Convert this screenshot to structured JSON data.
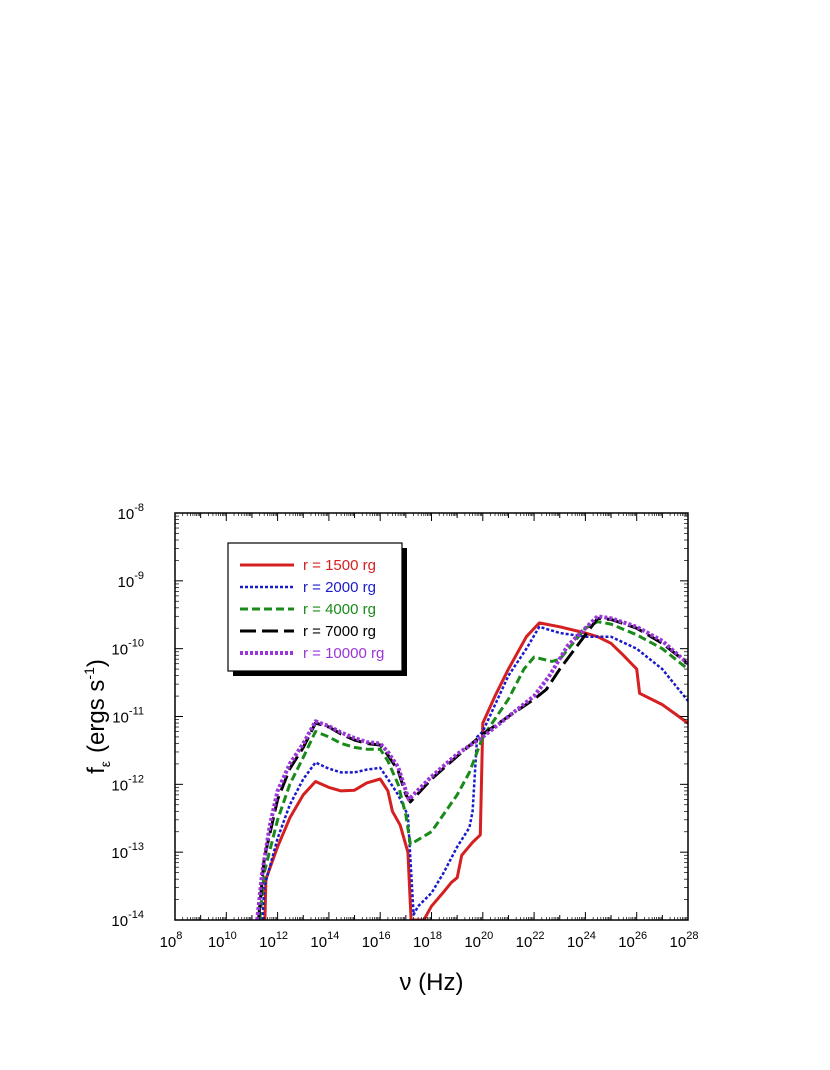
{
  "chart_data": {
    "type": "line",
    "title": "",
    "xlabel": "ν (Hz)",
    "ylabel_main": "f",
    "ylabel_sub": "ε",
    "ylabel_rest": "(ergs s",
    "ylabel_sup": "-1",
    "ylabel_close": ")",
    "x_scale": "log",
    "y_scale": "log",
    "xlim": [
      100000000.0,
      1e+28
    ],
    "ylim": [
      1e-14,
      1e-08
    ],
    "x_tick_exponents": [
      8,
      10,
      12,
      14,
      16,
      18,
      20,
      22,
      24,
      26,
      28
    ],
    "y_tick_exponents": [
      -14,
      -13,
      -12,
      -11,
      -10,
      -9,
      -8
    ],
    "tick_base": "10",
    "grid": false,
    "legend_position": "upper-left",
    "series": [
      {
        "name": "r = 1500 rg",
        "color": "#d42020",
        "dash": "solid",
        "points": [
          [
            320000000000.0,
            1e-14
          ],
          [
            350000000000.0,
            4e-14
          ],
          [
            1000000000000.0,
            1.2e-13
          ],
          [
            3000000000000.0,
            3.2e-13
          ],
          [
            10000000000000.0,
            7e-13
          ],
          [
            30000000000000.0,
            1.1e-12
          ],
          [
            100000000000000.0,
            9e-13
          ],
          [
            300000000000000.0,
            8e-13
          ],
          [
            1000000000000000.0,
            8.2e-13
          ],
          [
            3000000000000000.0,
            1.05e-12
          ],
          [
            1e+16,
            1.2e-12
          ],
          [
            2e+16,
            8e-13
          ],
          [
            3e+16,
            4e-13
          ],
          [
            6e+16,
            2.5e-13
          ],
          [
            1.2e+17,
            1e-13
          ],
          [
            1.6e+17,
            1e-14
          ],
          [
            5e+17,
            1e-14
          ],
          [
            1e+18,
            1.6e-14
          ],
          [
            3e+18,
            2.6e-14
          ],
          [
            6e+18,
            3.6e-14
          ],
          [
            1e+19,
            4.2e-14
          ],
          [
            1.5e+19,
            9e-14
          ],
          [
            4e+19,
            1.4e-13
          ],
          [
            8e+19,
            1.8e-13
          ],
          [
            1e+20,
            8e-12
          ],
          [
            3e+20,
            2e-11
          ],
          [
            1e+21,
            5e-11
          ],
          [
            5e+21,
            1.5e-10
          ],
          [
            1.6e+22,
            2.4e-10
          ],
          [
            1e+23,
            2.1e-10
          ],
          [
            1e+24,
            1.7e-10
          ],
          [
            3e+24,
            1.5e-10
          ],
          [
            1e+25,
            1.2e-10
          ],
          [
            3e+25,
            8e-11
          ],
          [
            1e+26,
            5e-11
          ],
          [
            1.3e+26,
            2.2e-11
          ],
          [
            1e+27,
            1.5e-11
          ],
          [
            1e+28,
            8e-12
          ]
        ]
      },
      {
        "name": "r = 2000 rg",
        "color": "#1a1acc",
        "dash": "dotted",
        "points": [
          [
            260000000000.0,
            1e-14
          ],
          [
            300000000000.0,
            3e-14
          ],
          [
            1000000000000.0,
            1.6e-13
          ],
          [
            3000000000000.0,
            5e-13
          ],
          [
            10000000000000.0,
            1.2e-12
          ],
          [
            30000000000000.0,
            2.1e-12
          ],
          [
            100000000000000.0,
            1.7e-12
          ],
          [
            300000000000000.0,
            1.5e-12
          ],
          [
            1000000000000000.0,
            1.5e-12
          ],
          [
            3000000000000000.0,
            1.65e-12
          ],
          [
            1e+16,
            1.75e-12
          ],
          [
            2e+16,
            1.2e-12
          ],
          [
            5e+16,
            7e-13
          ],
          [
            1.2e+17,
            3.5e-13
          ],
          [
            2e+17,
            1.2e-14
          ],
          [
            3e+17,
            1.6e-14
          ],
          [
            1e+18,
            2.5e-14
          ],
          [
            3e+18,
            5e-14
          ],
          [
            1e+19,
            1.2e-13
          ],
          [
            3e+19,
            2.3e-13
          ],
          [
            4e+19,
            4e-13
          ],
          [
            6e+19,
            5e-12
          ],
          [
            1e+20,
            6e-12
          ],
          [
            1e+21,
            4e-11
          ],
          [
            5e+21,
            1e-10
          ],
          [
            1.6e+22,
            2.1e-10
          ],
          [
            1e+23,
            1.7e-10
          ],
          [
            1e+24,
            1.5e-10
          ],
          [
            1e+25,
            1.5e-10
          ],
          [
            1e+26,
            1e-10
          ],
          [
            1e+27,
            5e-11
          ],
          [
            1e+28,
            1.7e-11
          ]
        ]
      },
      {
        "name": "r = 4000 rg",
        "color": "#1a8a1a",
        "dash": "dashed",
        "points": [
          [
            200000000000.0,
            1e-14
          ],
          [
            300000000000.0,
            5e-14
          ],
          [
            1000000000000.0,
            3e-13
          ],
          [
            3000000000000.0,
            1e-12
          ],
          [
            10000000000000.0,
            2.5e-12
          ],
          [
            30000000000000.0,
            6e-12
          ],
          [
            100000000000000.0,
            5e-12
          ],
          [
            300000000000000.0,
            4e-12
          ],
          [
            1000000000000000.0,
            3.5e-12
          ],
          [
            3000000000000000.0,
            3.3e-12
          ],
          [
            1e+16,
            3.3e-12
          ],
          [
            2e+16,
            2.2e-12
          ],
          [
            5e+16,
            1e-12
          ],
          [
            1e+17,
            3.5e-13
          ],
          [
            1.5e+17,
            1.3e-13
          ],
          [
            1e+18,
            2e-13
          ],
          [
            1e+19,
            7e-13
          ],
          [
            3e+19,
            1.5e-12
          ],
          [
            1e+20,
            5e-12
          ],
          [
            1e+21,
            1.8e-11
          ],
          [
            4e+21,
            5e-11
          ],
          [
            1e+22,
            7.5e-11
          ],
          [
            5e+22,
            6.5e-11
          ],
          [
            1e+23,
            7e-11
          ],
          [
            1e+24,
            2e-10
          ],
          [
            3e+24,
            2.5e-10
          ],
          [
            1e+25,
            2.3e-10
          ],
          [
            1e+26,
            1.6e-10
          ],
          [
            1e+27,
            1e-10
          ],
          [
            1e+28,
            5e-11
          ]
        ]
      },
      {
        "name": "r = 7000 rg",
        "color": "#000000",
        "dash": "longdash",
        "points": [
          [
            180000000000.0,
            1e-14
          ],
          [
            300000000000.0,
            8e-14
          ],
          [
            1000000000000.0,
            6e-13
          ],
          [
            3000000000000.0,
            1.7e-12
          ],
          [
            10000000000000.0,
            3.5e-12
          ],
          [
            30000000000000.0,
            8e-12
          ],
          [
            100000000000000.0,
            7e-12
          ],
          [
            300000000000000.0,
            5.5e-12
          ],
          [
            1000000000000000.0,
            4.5e-12
          ],
          [
            3000000000000000.0,
            4e-12
          ],
          [
            1e+16,
            3.8e-12
          ],
          [
            2e+16,
            2.7e-12
          ],
          [
            5e+16,
            1.6e-12
          ],
          [
            1e+17,
            7e-13
          ],
          [
            1.5e+17,
            5.5e-13
          ],
          [
            1e+18,
            1.2e-12
          ],
          [
            1e+19,
            2.6e-12
          ],
          [
            1e+20,
            5.5e-12
          ],
          [
            1e+21,
            1e-11
          ],
          [
            1e+22,
            1.8e-11
          ],
          [
            3e+22,
            2.5e-11
          ],
          [
            1e+23,
            5e-11
          ],
          [
            1e+24,
            1.6e-10
          ],
          [
            3e+24,
            2.8e-10
          ],
          [
            1e+25,
            2.7e-10
          ],
          [
            1e+26,
            2e-10
          ],
          [
            1e+27,
            1.2e-10
          ],
          [
            1e+28,
            6e-11
          ]
        ]
      },
      {
        "name": "r = 10000 rg",
        "color": "#9a35d8",
        "dash": "dotted-thick",
        "points": [
          [
            160000000000.0,
            1e-14
          ],
          [
            250000000000.0,
            5e-14
          ],
          [
            500000000000.0,
            2.5e-13
          ],
          [
            1000000000000.0,
            8e-13
          ],
          [
            3000000000000.0,
            2e-12
          ],
          [
            10000000000000.0,
            4e-12
          ],
          [
            30000000000000.0,
            8.5e-12
          ],
          [
            100000000000000.0,
            7.2e-12
          ],
          [
            300000000000000.0,
            5.8e-12
          ],
          [
            1000000000000000.0,
            4.8e-12
          ],
          [
            3000000000000000.0,
            4.2e-12
          ],
          [
            1e+16,
            4e-12
          ],
          [
            2e+16,
            3e-12
          ],
          [
            5e+16,
            1.8e-12
          ],
          [
            1e+17,
            8e-13
          ],
          [
            1.3e+17,
            6e-13
          ],
          [
            1e+18,
            1.3e-12
          ],
          [
            1e+19,
            2.8e-12
          ],
          [
            1e+20,
            5e-12
          ],
          [
            1e+21,
            1e-11
          ],
          [
            1e+22,
            2e-11
          ],
          [
            4e+22,
            4e-11
          ],
          [
            2e+23,
            1.1e-10
          ],
          [
            1e+24,
            2e-10
          ],
          [
            3e+24,
            3e-10
          ],
          [
            1e+25,
            2.8e-10
          ],
          [
            1e+26,
            2.1e-10
          ],
          [
            1e+27,
            1.3e-10
          ],
          [
            1e+28,
            6e-11
          ]
        ]
      }
    ]
  }
}
